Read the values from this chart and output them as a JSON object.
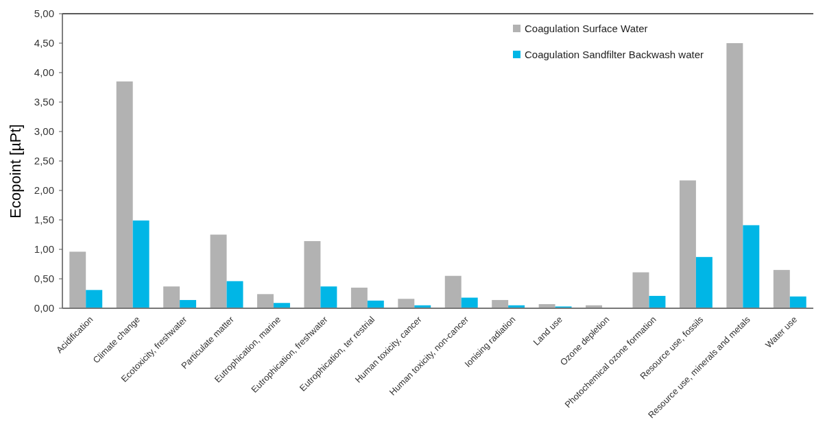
{
  "chart_data": {
    "type": "bar",
    "ylabel": "Ecopoint [µPt]",
    "categories": [
      "Acidification",
      "Climate change",
      "Ecotoxicity, freshwater",
      "Particulate matter",
      "Eutrophication, marine",
      "Eutrophication, freshwater",
      "Eutrophication, ter restrial",
      "Human toxicity, cancer",
      "Human toxicity, non-cancer",
      "Ionising radiation",
      "Land use",
      "Ozone depletion",
      "Photochemical ozone formation",
      "Resource use, fossils",
      "Resource use, minerals and metals",
      "Water use"
    ],
    "series": [
      {
        "name": "Coagulation Surface Water",
        "color": "#b2b2b2",
        "values": [
          0.96,
          3.85,
          0.37,
          1.25,
          0.24,
          1.14,
          0.35,
          0.16,
          0.55,
          0.14,
          0.07,
          0.05,
          0.61,
          2.17,
          4.5,
          0.65
        ]
      },
      {
        "name": "Coagulation Sandfilter Backwash water",
        "color": "#00b6e6",
        "values": [
          0.31,
          1.49,
          0.14,
          0.46,
          0.09,
          0.37,
          0.13,
          0.05,
          0.18,
          0.05,
          0.03,
          0.01,
          0.21,
          0.87,
          1.41,
          0.2
        ]
      }
    ],
    "ylim": [
      0,
      5
    ],
    "yticks": [
      {
        "value": 0,
        "label": "0,00"
      },
      {
        "value": 0.5,
        "label": "0,50"
      },
      {
        "value": 1,
        "label": "1,00"
      },
      {
        "value": 1.5,
        "label": "1,50"
      },
      {
        "value": 2,
        "label": "2,00"
      },
      {
        "value": 2.5,
        "label": "2,50"
      },
      {
        "value": 3,
        "label": "3,00"
      },
      {
        "value": 3.5,
        "label": "3,50"
      },
      {
        "value": 4,
        "label": "4,00"
      },
      {
        "value": 4.5,
        "label": "4,50"
      },
      {
        "value": 5,
        "label": "5,00"
      }
    ],
    "legend": "top right"
  }
}
